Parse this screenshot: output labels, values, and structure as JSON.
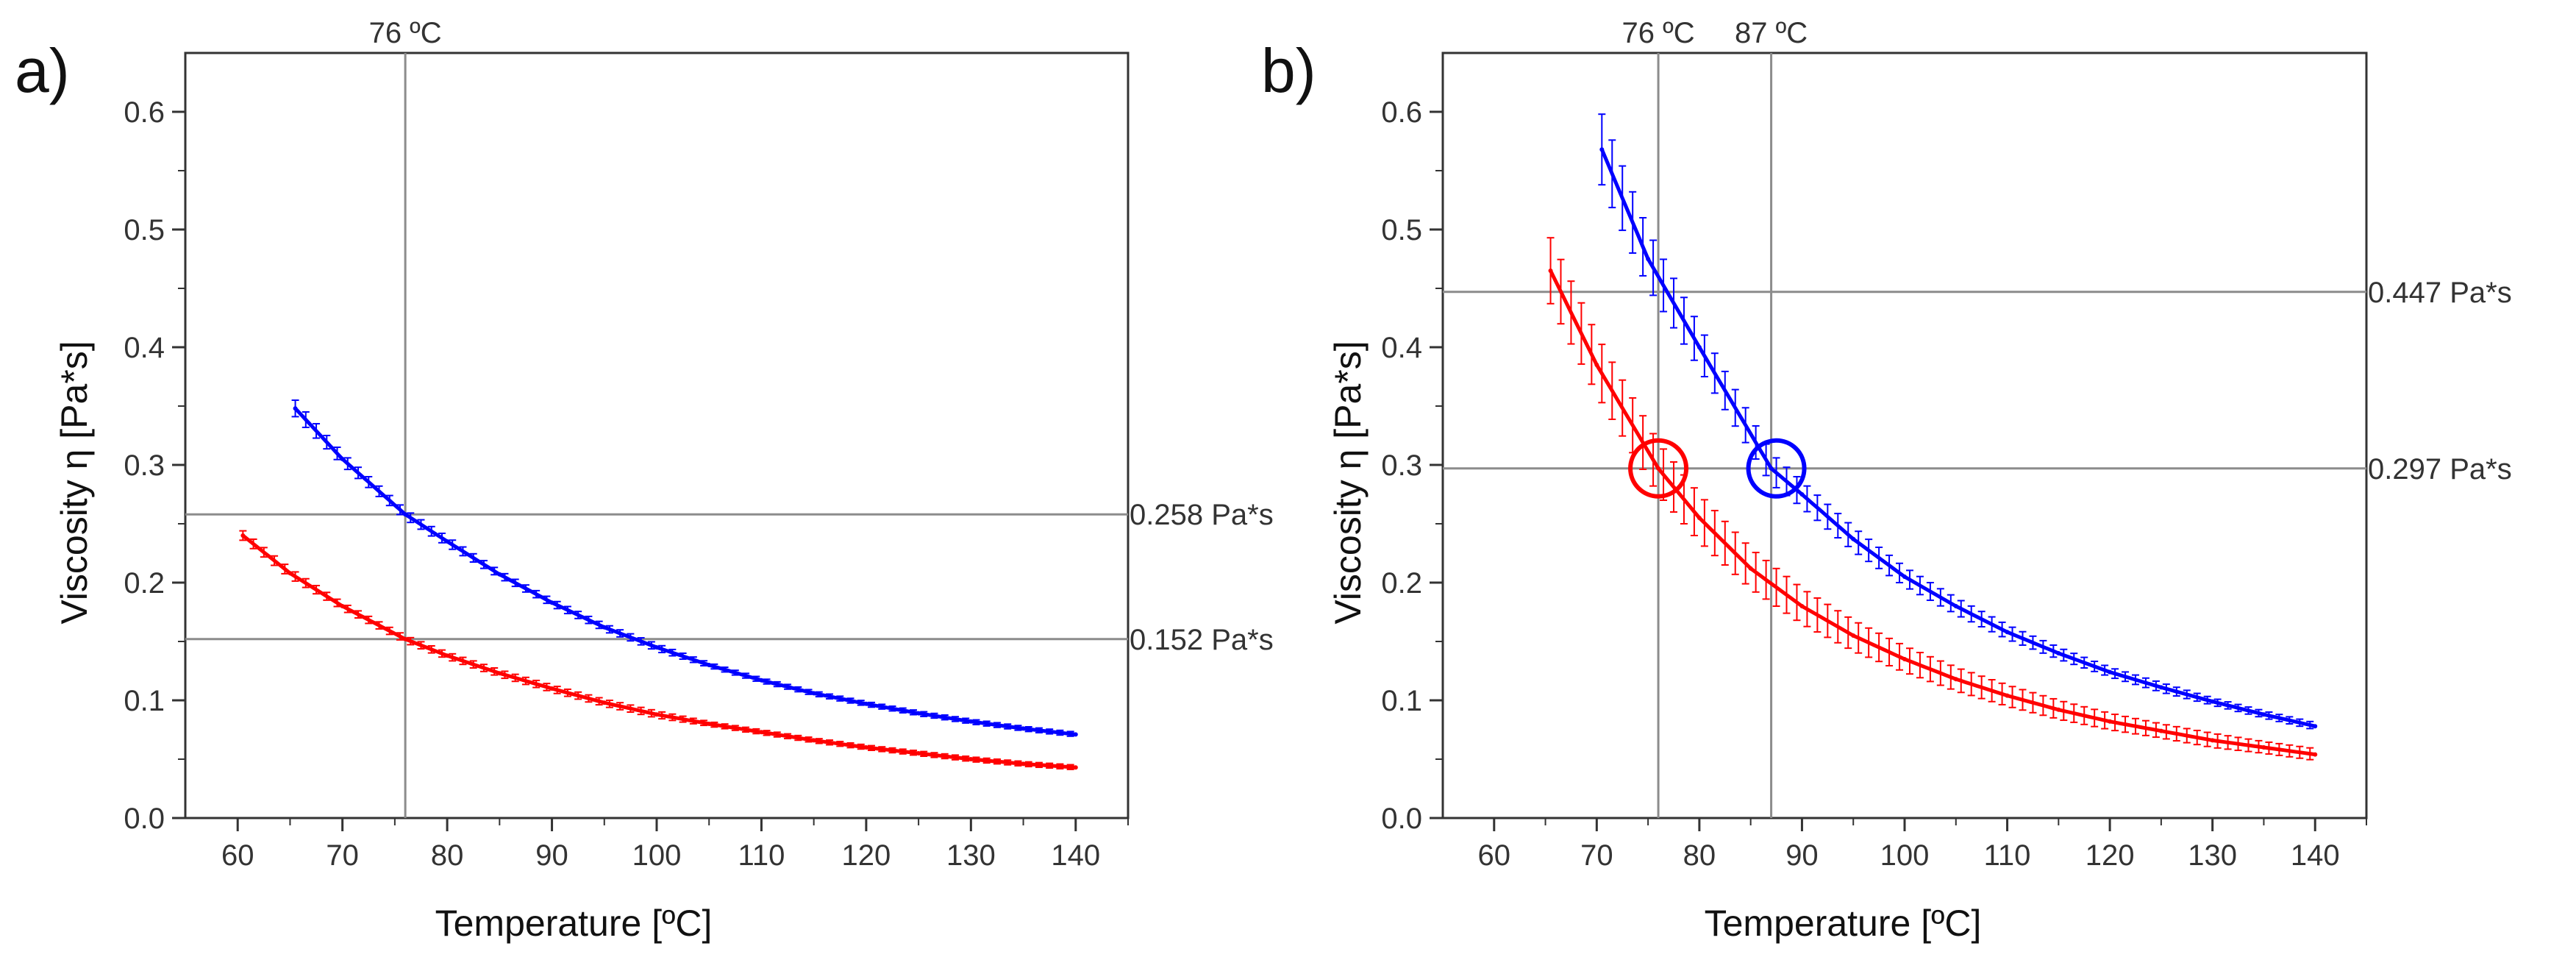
{
  "colors": {
    "series_1": "#ff0000",
    "series_2": "#0000ff",
    "axes": "#333333",
    "reference_lines": "#8c8c8c"
  },
  "chart_data": [
    {
      "panel": "a)",
      "type": "line",
      "xlabel": "Temperature [ºC]",
      "ylabel": "Viscosity η [Pa*s]",
      "xlim": [
        55,
        145
      ],
      "ylim": [
        0,
        0.65
      ],
      "xticks": [
        60,
        70,
        80,
        90,
        100,
        110,
        120,
        130,
        140
      ],
      "yticks": [
        0.0,
        0.1,
        0.2,
        0.3,
        0.4,
        0.5,
        0.6
      ],
      "tick_labels_x": [
        "60",
        "70",
        "80",
        "90",
        "100",
        "110",
        "120",
        "130",
        "140"
      ],
      "tick_labels_y": [
        "0.0",
        "0.1",
        "0.2",
        "0.3",
        "0.4",
        "0.5",
        "0.6"
      ],
      "grid": false,
      "series": [
        {
          "name": "red",
          "color": "#ff0000",
          "error_bars": true,
          "x": [
            60.5,
            65,
            70,
            76,
            80,
            85,
            90,
            95,
            100,
            105,
            110,
            115,
            120,
            125,
            130,
            135,
            140
          ],
          "y": [
            0.24,
            0.208,
            0.18,
            0.152,
            0.138,
            0.123,
            0.11,
            0.098,
            0.088,
            0.08,
            0.073,
            0.066,
            0.06,
            0.055,
            0.05,
            0.046,
            0.043
          ],
          "err": [
            0.004,
            0.004,
            0.003,
            0.003,
            0.003,
            0.003,
            0.003,
            0.003,
            0.003,
            0.002,
            0.002,
            0.002,
            0.002,
            0.002,
            0.002,
            0.002,
            0.002
          ]
        },
        {
          "name": "blue",
          "color": "#0000ff",
          "error_bars": true,
          "x": [
            65.5,
            70,
            76,
            80,
            85,
            90,
            95,
            100,
            105,
            110,
            115,
            120,
            125,
            130,
            135,
            140
          ],
          "y": [
            0.348,
            0.305,
            0.258,
            0.235,
            0.207,
            0.183,
            0.162,
            0.145,
            0.13,
            0.117,
            0.106,
            0.097,
            0.089,
            0.082,
            0.076,
            0.071
          ],
          "err": [
            0.007,
            0.005,
            0.004,
            0.004,
            0.003,
            0.003,
            0.003,
            0.003,
            0.002,
            0.002,
            0.002,
            0.002,
            0.002,
            0.002,
            0.002,
            0.002
          ]
        }
      ],
      "reference_lines": {
        "vertical": [
          {
            "x": 76,
            "label": "76 ºC"
          }
        ],
        "horizontal": [
          {
            "y": 0.258,
            "label": "0.258 Pa*s"
          },
          {
            "y": 0.152,
            "label": "0.152 Pa*s"
          }
        ]
      },
      "circles": []
    },
    {
      "panel": "b)",
      "type": "line",
      "xlabel": "Temperature [ºC]",
      "ylabel": "Viscosity η [Pa*s]",
      "xlim": [
        55,
        145
      ],
      "ylim": [
        0,
        0.65
      ],
      "xticks": [
        60,
        70,
        80,
        90,
        100,
        110,
        120,
        130,
        140
      ],
      "yticks": [
        0.0,
        0.1,
        0.2,
        0.3,
        0.4,
        0.5,
        0.6
      ],
      "tick_labels_x": [
        "60",
        "70",
        "80",
        "90",
        "100",
        "110",
        "120",
        "130",
        "140"
      ],
      "tick_labels_y": [
        "0.0",
        "0.1",
        "0.2",
        "0.3",
        "0.4",
        "0.5",
        "0.6"
      ],
      "grid": false,
      "series": [
        {
          "name": "red",
          "color": "#ff0000",
          "error_bars": true,
          "x": [
            65.5,
            70,
            76,
            80,
            85,
            90,
            95,
            100,
            105,
            110,
            115,
            120,
            125,
            130,
            135,
            140
          ],
          "y": [
            0.465,
            0.385,
            0.297,
            0.255,
            0.212,
            0.18,
            0.155,
            0.135,
            0.118,
            0.104,
            0.092,
            0.082,
            0.074,
            0.066,
            0.06,
            0.054
          ],
          "err": [
            0.028,
            0.025,
            0.022,
            0.02,
            0.017,
            0.015,
            0.013,
            0.011,
            0.01,
            0.009,
            0.008,
            0.007,
            0.006,
            0.006,
            0.005,
            0.005
          ]
        },
        {
          "name": "blue",
          "color": "#0000ff",
          "error_bars": true,
          "x": [
            70.5,
            75,
            80,
            87,
            90,
            95,
            100,
            105,
            110,
            115,
            120,
            125,
            130,
            135,
            140
          ],
          "y": [
            0.568,
            0.475,
            0.4,
            0.297,
            0.275,
            0.237,
            0.205,
            0.18,
            0.158,
            0.14,
            0.124,
            0.111,
            0.099,
            0.088,
            0.078
          ],
          "err": [
            0.03,
            0.024,
            0.018,
            0.013,
            0.011,
            0.01,
            0.008,
            0.007,
            0.006,
            0.005,
            0.004,
            0.004,
            0.003,
            0.003,
            0.003
          ]
        }
      ],
      "reference_lines": {
        "vertical": [
          {
            "x": 76,
            "label": "76 ºC"
          },
          {
            "x": 87,
            "label": "87 ºC"
          }
        ],
        "horizontal": [
          {
            "y": 0.447,
            "label": "0.447 Pa*s"
          },
          {
            "y": 0.297,
            "label": "0.297 Pa*s"
          }
        ]
      },
      "circles": [
        {
          "x": 76,
          "y": 0.297,
          "color": "#ff0000"
        },
        {
          "x": 87.5,
          "y": 0.297,
          "color": "#0000ff"
        }
      ]
    }
  ]
}
